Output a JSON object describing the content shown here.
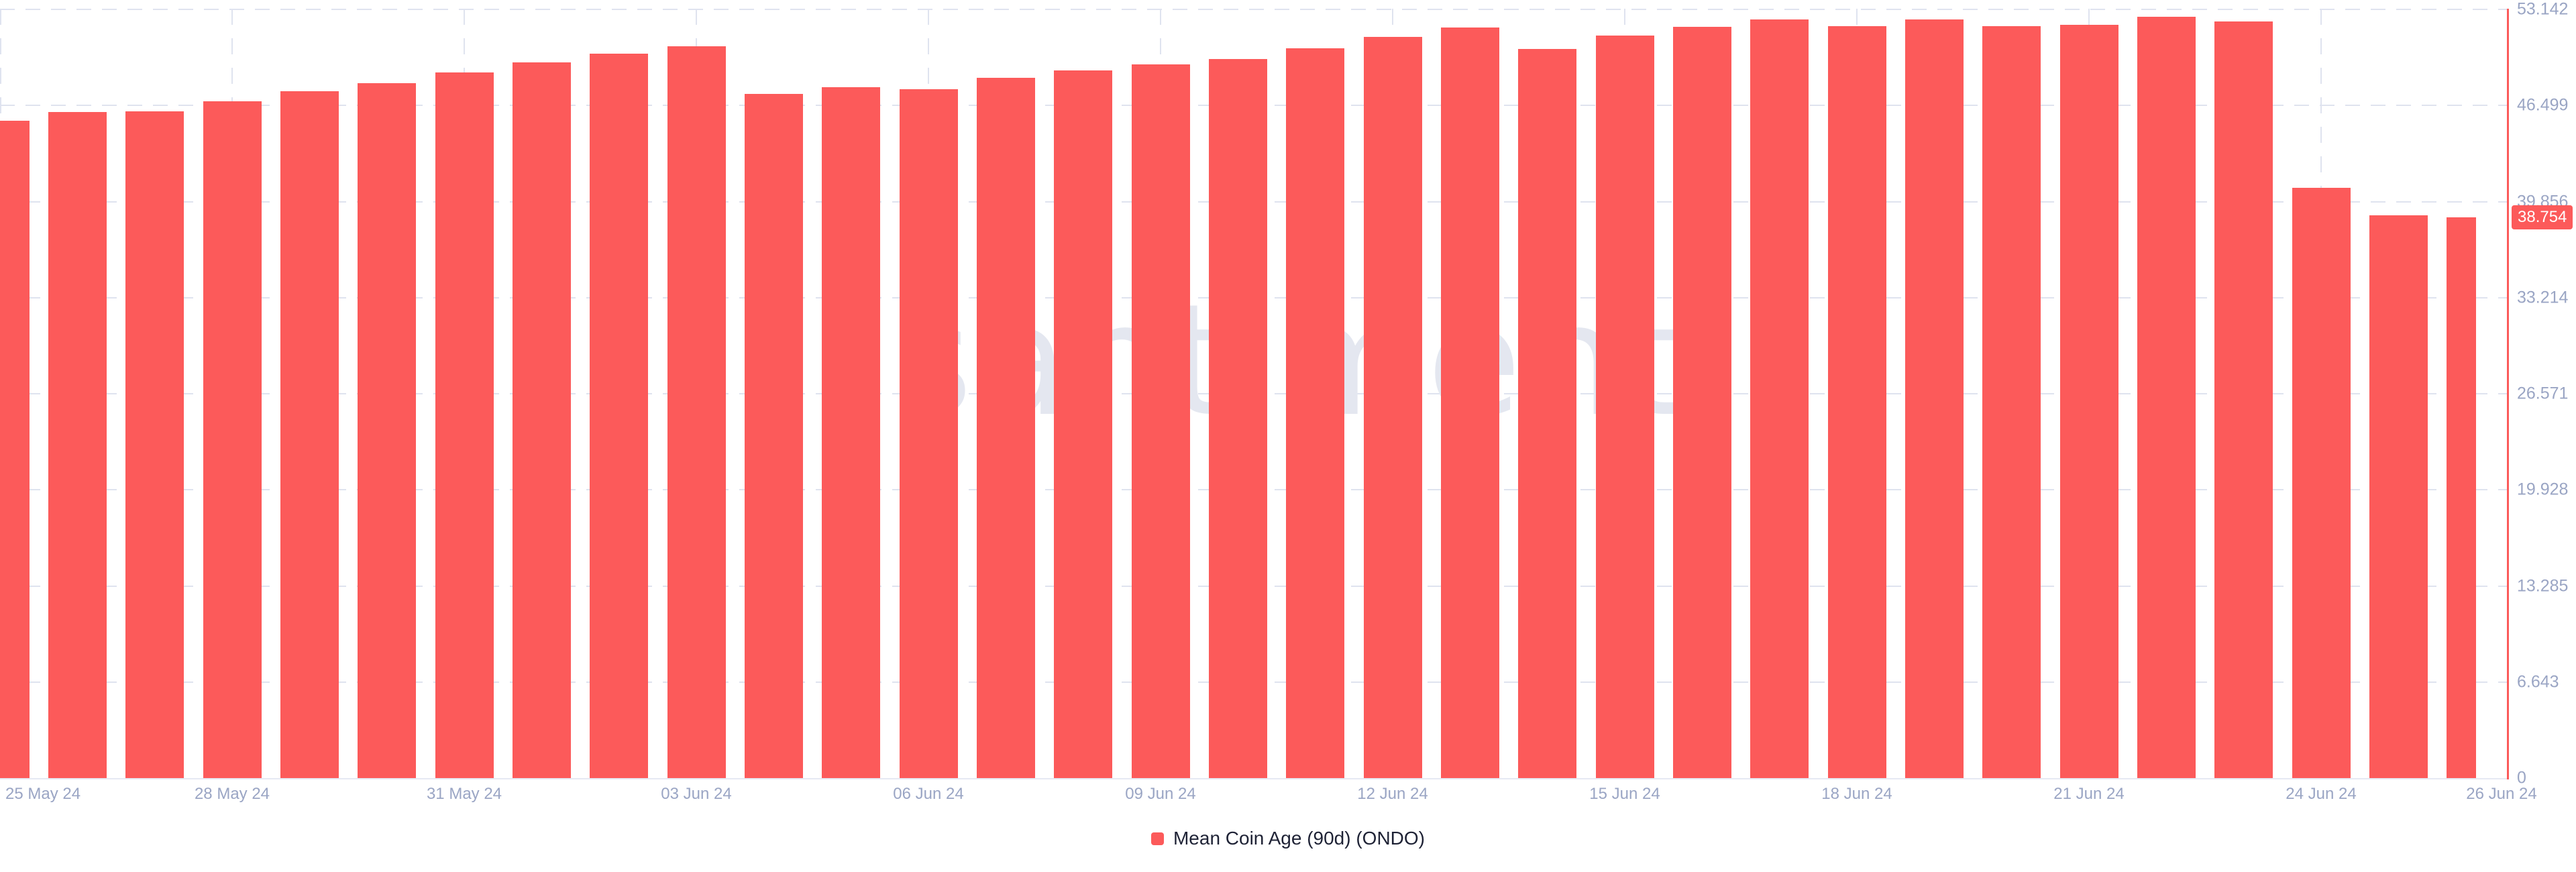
{
  "chart_data": {
    "type": "bar",
    "title": "",
    "categories": [
      "25 May 24",
      "26 May 24",
      "27 May 24",
      "28 May 24",
      "29 May 24",
      "30 May 24",
      "31 May 24",
      "01 Jun 24",
      "02 Jun 24",
      "03 Jun 24",
      "04 Jun 24",
      "05 Jun 24",
      "06 Jun 24",
      "07 Jun 24",
      "08 Jun 24",
      "09 Jun 24",
      "10 Jun 24",
      "11 Jun 24",
      "12 Jun 24",
      "13 Jun 24",
      "14 Jun 24",
      "15 Jun 24",
      "16 Jun 24",
      "17 Jun 24",
      "18 Jun 24",
      "19 Jun 24",
      "20 Jun 24",
      "21 Jun 24",
      "22 Jun 24",
      "23 Jun 24",
      "24 Jun 24",
      "25 Jun 24",
      "26 Jun 24"
    ],
    "series": [
      {
        "name": "Mean Coin Age (90d) (ONDO)",
        "color": "#fc5a5a",
        "values": [
          45.46,
          46.04,
          46.09,
          46.79,
          47.47,
          48.06,
          48.79,
          49.48,
          50.07,
          50.6,
          47.32,
          47.78,
          47.63,
          48.4,
          48.94,
          49.34,
          49.73,
          50.46,
          51.25,
          51.89,
          50.41,
          51.34,
          51.93,
          52.43,
          51.97,
          52.43,
          51.97,
          52.08,
          52.63,
          52.32,
          40.81,
          38.92,
          38.754
        ]
      }
    ],
    "xlabel": "",
    "ylabel": "",
    "ylim": [
      0,
      53.142
    ],
    "y_ticks": [
      53.142,
      46.499,
      39.856,
      33.214,
      26.571,
      19.928,
      13.285,
      6.643,
      0
    ],
    "y_tick_labels": [
      "53.142",
      "46.499",
      "39.856",
      "33.214",
      "26.571",
      "19.928",
      "13.285",
      "6.643",
      "0"
    ],
    "x_tick_labels": [
      "25 May 24",
      "28 May 24",
      "31 May 24",
      "03 Jun 24",
      "06 Jun 24",
      "09 Jun 24",
      "12 Jun 24",
      "15 Jun 24",
      "18 Jun 24",
      "21 Jun 24",
      "24 Jun 24",
      "26 Jun 24"
    ],
    "grid": true,
    "legend_position": "bottom-center",
    "current_value_badge": "38.754"
  },
  "legend": {
    "label": "Mean Coin Age (90d) (ONDO)"
  },
  "watermark": {
    "text": "santiment"
  },
  "colors": {
    "bar": "#fc5a5a",
    "axis_line": "#fc5a5a",
    "badge_bg": "#fc5a5a",
    "badge_text": "#ffffff",
    "gridline": "#dfe3ef",
    "tick_label": "#9aa5c4",
    "legend_text": "#1e2235",
    "watermark": "#e4e7f0"
  }
}
